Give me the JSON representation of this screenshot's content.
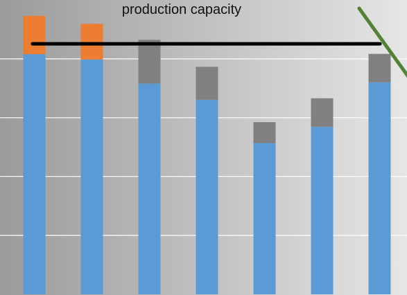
{
  "chart_data": {
    "type": "bar",
    "stacked": true,
    "title": "",
    "xlabel": "",
    "ylabel": "",
    "categories": [
      "",
      "",
      "",
      "",
      "",
      "",
      ""
    ],
    "ylim": [
      0,
      100
    ],
    "grid": true,
    "series": [
      {
        "values": [
          81.6,
          79.8,
          71.6,
          66.1,
          51.4,
          56.9,
          72.0
        ]
      },
      {
        "values": [
          13.0,
          12.1,
          0,
          0,
          0,
          0,
          0
        ]
      },
      {
        "values": [
          0,
          0,
          14.9,
          11.2,
          7.1,
          9.7,
          9.7
        ]
      }
    ],
    "reference_line": {
      "label": "production capacity",
      "value": 85.1
    }
  },
  "colors": {
    "series": [
      "#5b9bd5",
      "#ed7d31",
      "#808080"
    ],
    "capacity_line": "#000000",
    "trend_line": "#548235",
    "grid": "#ffffff",
    "bg_left": "#9b9b9b",
    "bg_right": "#e6e6e6"
  }
}
